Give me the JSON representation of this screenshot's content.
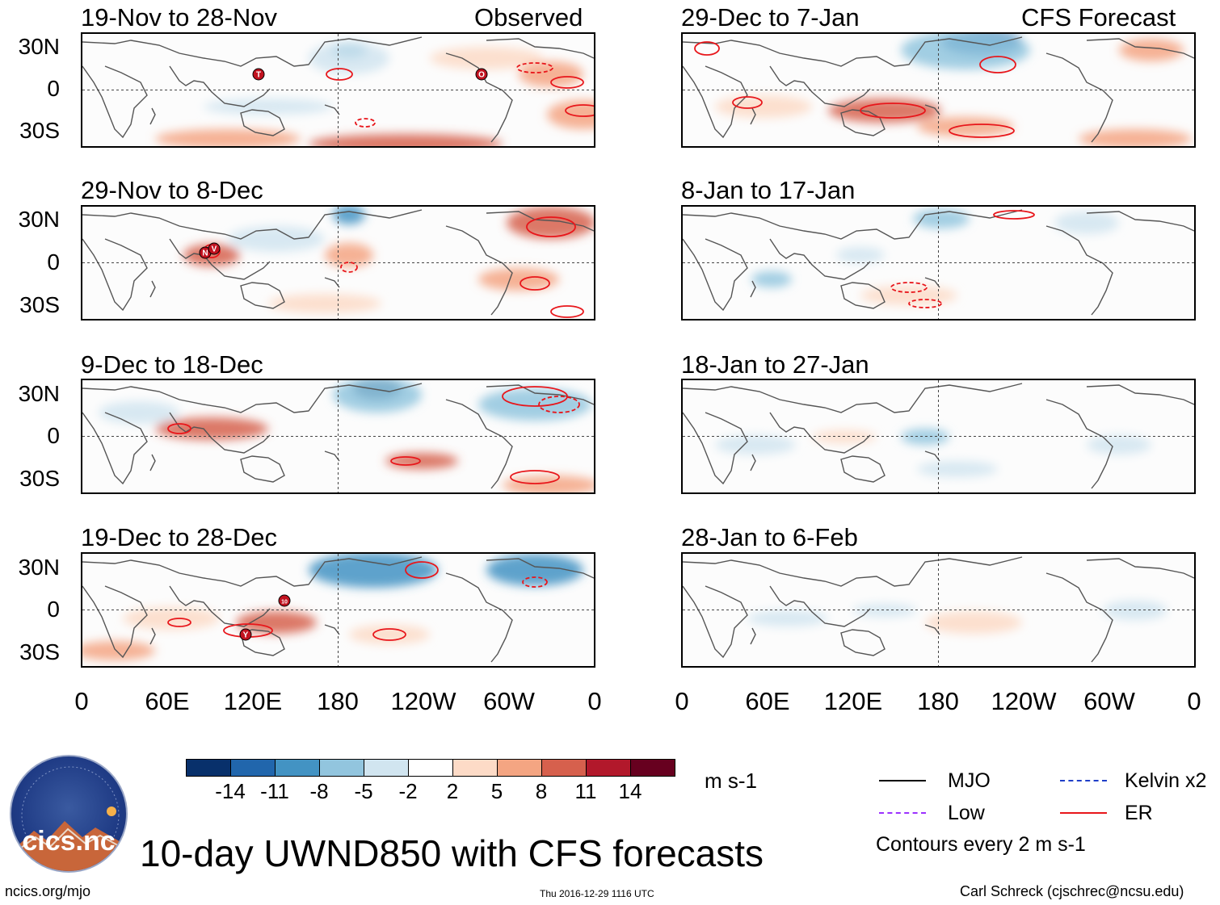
{
  "panels": [
    {
      "id": "p1",
      "title": "19-Nov to 28-Nov",
      "tag": "Observed"
    },
    {
      "id": "p2",
      "title": "29-Nov to 8-Dec",
      "tag": ""
    },
    {
      "id": "p3",
      "title": "9-Dec to 18-Dec",
      "tag": ""
    },
    {
      "id": "p4",
      "title": "19-Dec to 28-Dec",
      "tag": ""
    },
    {
      "id": "p5",
      "title": "29-Dec to 7-Jan",
      "tag": "CFS Forecast"
    },
    {
      "id": "p6",
      "title": "8-Jan to 17-Jan",
      "tag": ""
    },
    {
      "id": "p7",
      "title": "18-Jan to 27-Jan",
      "tag": ""
    },
    {
      "id": "p8",
      "title": "28-Jan to 6-Feb",
      "tag": ""
    }
  ],
  "y_ticks": [
    "30N",
    "0",
    "30S"
  ],
  "x_ticks": [
    "0",
    "60E",
    "120E",
    "180",
    "120W",
    "60W",
    "0"
  ],
  "colorbar": {
    "colors": [
      "#08306b",
      "#2166ac",
      "#4393c3",
      "#92c5de",
      "#d1e5f0",
      "#ffffff",
      "#fddbc7",
      "#f4a582",
      "#d6604d",
      "#b2182b",
      "#67001f"
    ],
    "labels": [
      "-14",
      "-11",
      "-8",
      "-5",
      "-2",
      "2",
      "5",
      "8",
      "11",
      "14"
    ],
    "units": "m s-1"
  },
  "legend": {
    "items": [
      {
        "label": "MJO",
        "color": "#000000"
      },
      {
        "label": "Kelvin x2",
        "color": "#1f3fc8"
      },
      {
        "label": "Low",
        "color": "#9b30ff"
      },
      {
        "label": "ER",
        "color": "#e8161b"
      }
    ],
    "note": "Contours every 2 m s-1"
  },
  "main_title": "10-day UWND850 with CFS forecasts",
  "logo_text": "cics.nc",
  "footer": {
    "left": "ncics.org/mjo",
    "center": "Thu 2016-12-29 1116 UTC",
    "right": "Carl Schreck (cjschrec@ncsu.edu)"
  },
  "storm_markers": [
    {
      "panel": "p1",
      "letter": "T"
    },
    {
      "panel": "p1",
      "letter": "O"
    },
    {
      "panel": "p2",
      "letter": "N"
    },
    {
      "panel": "p2",
      "letter": "V"
    },
    {
      "panel": "p4",
      "letter": "10"
    },
    {
      "panel": "p4",
      "letter": "Y"
    }
  ]
}
